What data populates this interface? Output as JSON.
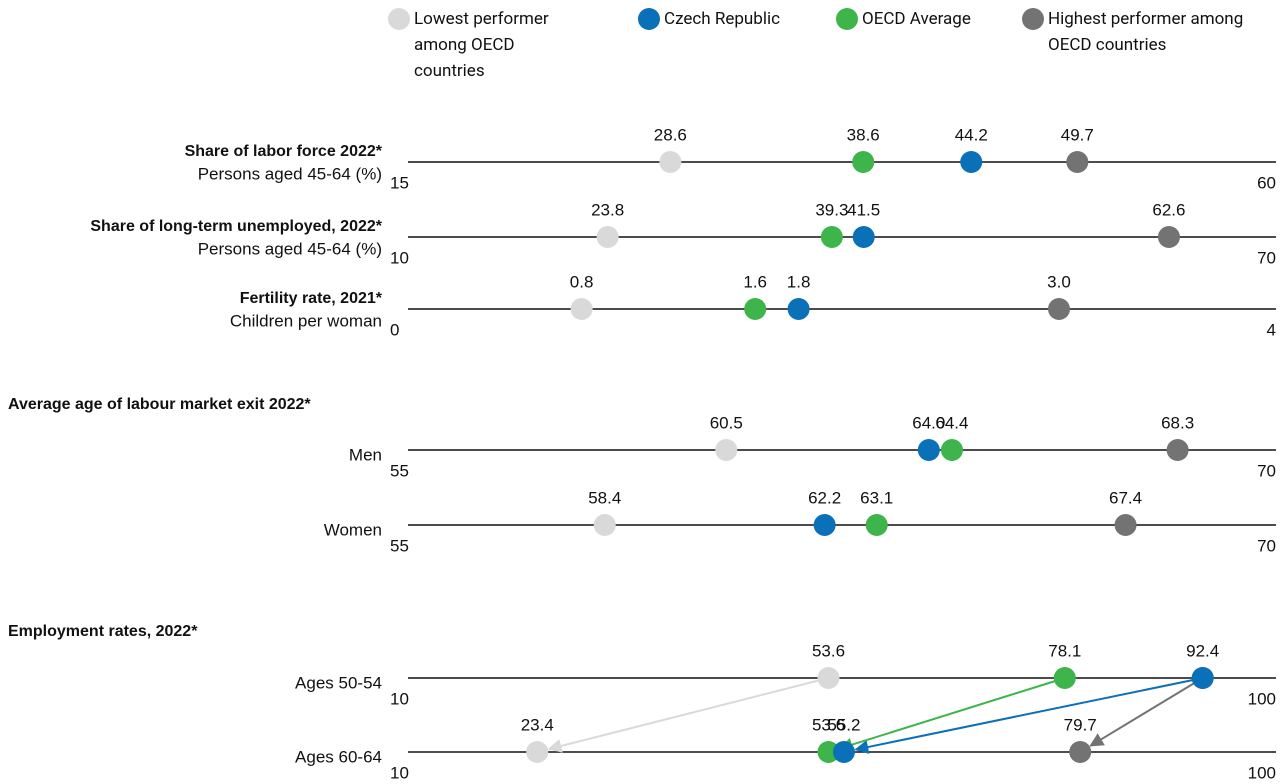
{
  "chart_data": {
    "type": "dot",
    "groups": [
      {
        "rows": [
          {
            "label": "Share of labor force 2022*",
            "sublabel": "Persons aged 45-64 (%)",
            "xlim": [
              15,
              60
            ],
            "xticks": [
              15,
              60
            ]
          },
          {
            "label": "Share of long-term unemployed, 2022*",
            "sublabel": "Persons aged 45-64 (%)",
            "xlim": [
              10,
              70
            ],
            "xticks": [
              10,
              70
            ]
          },
          {
            "label": "Fertility rate, 2021*",
            "sublabel": "Children per woman",
            "xlim": [
              0,
              4
            ],
            "xticks": [
              0,
              4
            ]
          }
        ]
      },
      {
        "title": "Average age of labour market exit 2022*",
        "rows": [
          {
            "label": "Men",
            "xlim": [
              55,
              70
            ],
            "xticks": [
              55,
              70
            ]
          },
          {
            "label": "Women",
            "xlim": [
              55,
              70
            ],
            "xticks": [
              55,
              70
            ]
          }
        ]
      },
      {
        "title": "Employment rates, 2022*",
        "arrows": true,
        "rows": [
          {
            "label": "Ages 50-54",
            "xlim": [
              10,
              100
            ],
            "xticks": [
              10,
              100
            ]
          },
          {
            "label": "Ages 60-64",
            "xlim": [
              10,
              100
            ],
            "xticks": [
              10,
              100
            ]
          }
        ]
      }
    ],
    "series": [
      {
        "name": "Lowest performer among OECD countries",
        "color": "#d9d9d9",
        "values": [
          28.6,
          23.8,
          0.8,
          60.5,
          58.4,
          53.6,
          23.4
        ],
        "value_labels": [
          "28.6",
          "23.8",
          "0.8",
          "60.5",
          "58.4",
          "53.6",
          "23.4"
        ]
      },
      {
        "name": "Czech Republic",
        "color": "#0a70b8",
        "values": [
          44.2,
          41.5,
          1.8,
          64,
          62.2,
          92.4,
          55.2
        ],
        "value_labels": [
          "44.2",
          "41.5",
          "1.8",
          "64.0",
          "62.2",
          "92.4",
          "55.2"
        ]
      },
      {
        "name": "OECD Average",
        "color": "#3db54a",
        "values": [
          38.6,
          39.3,
          1.6,
          64.4,
          63.1,
          78.1,
          53.6
        ],
        "value_labels": [
          "38.6",
          "39.3",
          "1.6",
          "64.4",
          "63.1",
          "78.1",
          "53.6"
        ]
      },
      {
        "name": "Highest performer among OECD countries",
        "color": "#737373",
        "values": [
          49.7,
          62.6,
          3,
          68.3,
          67.4,
          92.4,
          79.7
        ],
        "value_labels": [
          "49.7",
          "62.6",
          "3.0",
          "68.3",
          "67.4",
          null,
          "79.7"
        ]
      }
    ]
  }
}
